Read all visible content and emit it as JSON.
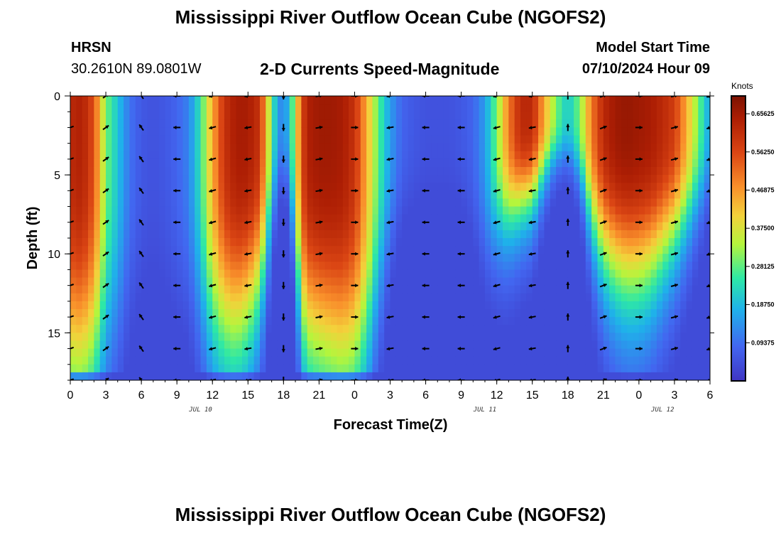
{
  "header": {
    "title": "Mississippi River Outflow Ocean Cube (NGOFS2)",
    "station_name": "HRSN",
    "station_coords": "30.2610N  89.0801W",
    "subtitle": "2-D Currents Speed-Magnitude",
    "model_label": "Model Start Time",
    "model_time": "07/10/2024 Hour 09"
  },
  "footer": {
    "title": "Mississippi River Outflow Ocean Cube (NGOFS2)"
  },
  "chart_data": {
    "type": "heatmap",
    "title": "2-D Currents Speed-Magnitude",
    "xlabel": "Forecast Time(Z)",
    "ylabel": "Depth (ft)",
    "xlim": [
      0,
      54
    ],
    "ylim": [
      0,
      18
    ],
    "x_tick_labels": [
      "0",
      "3",
      "6",
      "9",
      "12",
      "15",
      "18",
      "21",
      "0",
      "3",
      "6",
      "9",
      "12",
      "15",
      "18",
      "21",
      "0",
      "3",
      "6"
    ],
    "y_ticks": [
      0,
      5,
      10,
      15
    ],
    "date_labels": [
      {
        "x": 11,
        "text": "JUL 10"
      },
      {
        "x": 35,
        "text": "JUL 11"
      },
      {
        "x": 50,
        "text": "JUL 12"
      }
    ],
    "colorbar": {
      "label": "Knots",
      "range": [
        0.0,
        0.7
      ],
      "ticks": [
        "0.65625",
        "0.56250",
        "0.46875",
        "0.37500",
        "0.28125",
        "0.18750",
        "0.09375"
      ],
      "tick_values": [
        0.65625,
        0.5625,
        0.46875,
        0.375,
        0.28125,
        0.1875,
        0.09375
      ]
    },
    "speed_profile": {
      "hours": [
        0,
        1,
        2,
        3,
        4,
        5,
        6,
        7,
        8,
        9,
        10,
        11,
        12,
        13,
        14,
        15,
        16,
        16.5,
        17,
        17.5,
        18,
        18.5,
        19,
        19.5,
        20,
        21,
        22,
        23,
        24,
        25,
        26,
        27,
        28,
        29,
        30,
        31,
        32,
        33,
        34,
        35,
        36,
        37,
        38,
        39,
        40,
        41,
        42,
        43,
        44,
        45,
        46,
        47,
        48,
        49,
        50,
        51,
        52,
        53,
        54
      ],
      "surface_knots": [
        0.62,
        0.64,
        0.55,
        0.3,
        0.2,
        0.1,
        0.06,
        0.05,
        0.06,
        0.08,
        0.12,
        0.25,
        0.45,
        0.6,
        0.65,
        0.65,
        0.6,
        0.45,
        0.28,
        0.15,
        0.12,
        0.2,
        0.35,
        0.55,
        0.64,
        0.66,
        0.66,
        0.65,
        0.6,
        0.45,
        0.28,
        0.15,
        0.08,
        0.06,
        0.05,
        0.05,
        0.05,
        0.06,
        0.08,
        0.15,
        0.3,
        0.5,
        0.62,
        0.62,
        0.45,
        0.3,
        0.2,
        0.3,
        0.5,
        0.62,
        0.66,
        0.67,
        0.66,
        0.65,
        0.62,
        0.58,
        0.45,
        0.3,
        0.15
      ],
      "decay_depth_ft": [
        17.5,
        17.5,
        17,
        16,
        15,
        14,
        14,
        14,
        14,
        14,
        13,
        14,
        15,
        15,
        15,
        14,
        12,
        10,
        8,
        6,
        5,
        6,
        10,
        14,
        15.5,
        16,
        16.5,
        17,
        17,
        16,
        13,
        10,
        8,
        8,
        8,
        8,
        8,
        8,
        9,
        10,
        9,
        8,
        7,
        6.5,
        5,
        4,
        4,
        5,
        8,
        10,
        11,
        11.5,
        11.5,
        11,
        10,
        9,
        8,
        7,
        6
      ]
    },
    "vectors": {
      "hours": [
        0,
        3,
        6,
        9,
        12,
        15,
        18,
        21,
        24,
        27,
        30,
        33,
        36,
        39,
        42,
        45,
        48,
        51,
        54
      ],
      "direction_deg": [
        -160,
        35,
        125,
        180,
        -165,
        -170,
        -90,
        10,
        0,
        -170,
        180,
        180,
        -165,
        -170,
        90,
        20,
        0,
        15,
        -160
      ]
    }
  }
}
